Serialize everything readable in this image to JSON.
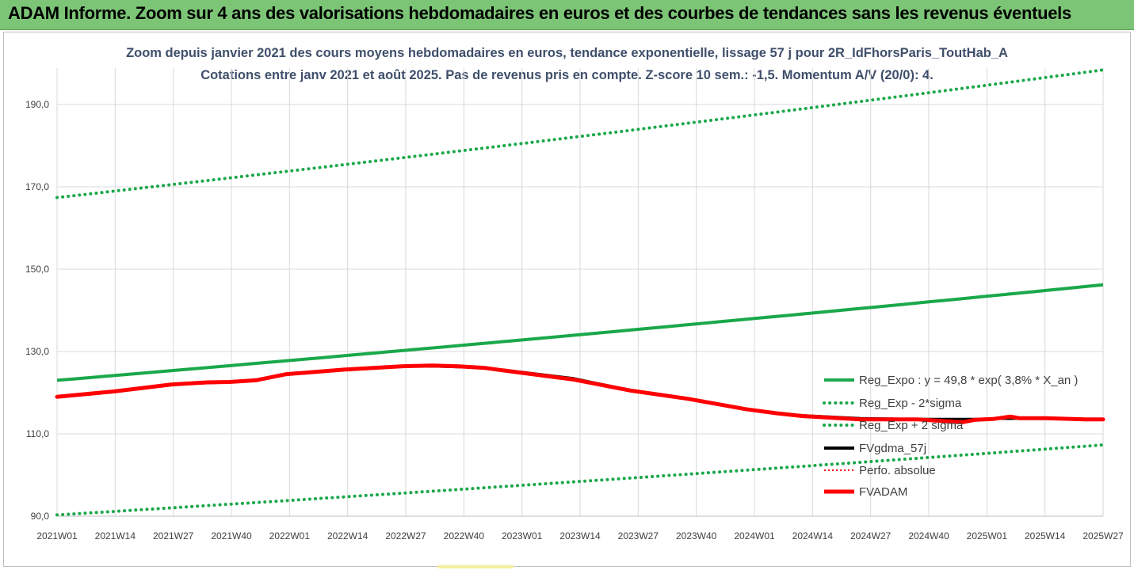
{
  "banner": {
    "title": "ADAM Informe. Zoom sur 4 ans des valorisations hebdomadaires en euros et des courbes de tendances sans les revenus éventuels"
  },
  "colors": {
    "banner_bg": "#7cc576",
    "trend_green": "#1aa84a",
    "fv_adam_red": "#ff0000",
    "fvgdma_black": "#000000",
    "perfo_red": "#ff0000",
    "grid": "#d9d9d9",
    "title_text": "#3f4f6b"
  },
  "chart_data": {
    "type": "line",
    "title": "Zoom depuis janvier 2021 des cours moyens hebdomadaires en euros, tendance exponentielle, lissage 57 j pour 2R_IdFhorsParis_ToutHab_A",
    "subtitle": "Cotations entre janv 2021 et août 2025. Pas de revenus pris en compte. Z-score 10 sem.: -1,5. Momentum A/V (20/0): 4.",
    "xlabel": "",
    "ylabel": "",
    "x_tick_labels": [
      "2021W01",
      "2021W14",
      "2021W27",
      "2021W40",
      "2022W01",
      "2022W14",
      "2022W27",
      "2022W40",
      "2023W01",
      "2023W14",
      "2023W27",
      "2023W40",
      "2024W01",
      "2024W14",
      "2024W27",
      "2024W40",
      "2025W01",
      "2025W14",
      "2025W27"
    ],
    "x_range": [
      0,
      237
    ],
    "y_tick_labels": [
      "90,0",
      "110,0",
      "130,0",
      "150,0",
      "170,0",
      "190,0"
    ],
    "y_ticks": [
      90,
      110,
      130,
      150,
      170,
      190
    ],
    "ylim": [
      90,
      200
    ],
    "grid": true,
    "legend_position": "right",
    "series": [
      {
        "name": "Reg_Expo : y = 49,8 * exp( 3,8% *  X_an )",
        "style": "solid",
        "x": [
          0,
          237
        ],
        "y": [
          123.0,
          146.2
        ],
        "shape": "exponential"
      },
      {
        "name": "Reg_Exp - 2*sigma",
        "style": "dotted",
        "x": [
          0,
          237
        ],
        "y": [
          90.3,
          107.3
        ],
        "shape": "exponential"
      },
      {
        "name": "Reg_Exp + 2 sigma",
        "style": "dotted",
        "x": [
          0,
          237
        ],
        "y": [
          167.4,
          198.4
        ],
        "shape": "exponential"
      },
      {
        "name": "FVgdma_57j",
        "style": "solid",
        "x": [
          0,
          13,
          26,
          39,
          45,
          52,
          60,
          65,
          78,
          85,
          91,
          97,
          104,
          117,
          130,
          143,
          156,
          163,
          169,
          182,
          195,
          208,
          218,
          224,
          237
        ],
        "y": [
          119.0,
          120.4,
          122.0,
          122.5,
          123.0,
          124.5,
          125.2,
          125.6,
          126.3,
          126.4,
          126.2,
          126.0,
          125.2,
          123.5,
          120.6,
          118.5,
          116.0,
          115.0,
          114.5,
          113.8,
          113.6,
          113.6,
          113.7,
          113.8,
          113.5
        ]
      },
      {
        "name": "Perfo. absolue",
        "style": "dotted",
        "x": [],
        "y": []
      },
      {
        "name": "FVADAM",
        "style": "thick",
        "x": [
          0,
          13,
          26,
          34,
          39,
          45,
          52,
          58,
          65,
          78,
          85,
          91,
          97,
          104,
          117,
          130,
          143,
          156,
          163,
          169,
          182,
          195,
          205,
          208,
          212,
          216,
          218,
          224,
          233,
          237
        ],
        "y": [
          119.0,
          120.3,
          122.0,
          122.5,
          122.6,
          123.0,
          124.5,
          125.0,
          125.6,
          126.4,
          126.6,
          126.4,
          126.0,
          125.0,
          123.2,
          120.5,
          118.5,
          116.0,
          115.0,
          114.3,
          113.5,
          113.5,
          112.8,
          113.4,
          113.6,
          114.2,
          113.8,
          113.8,
          113.5,
          113.5
        ]
      }
    ]
  }
}
